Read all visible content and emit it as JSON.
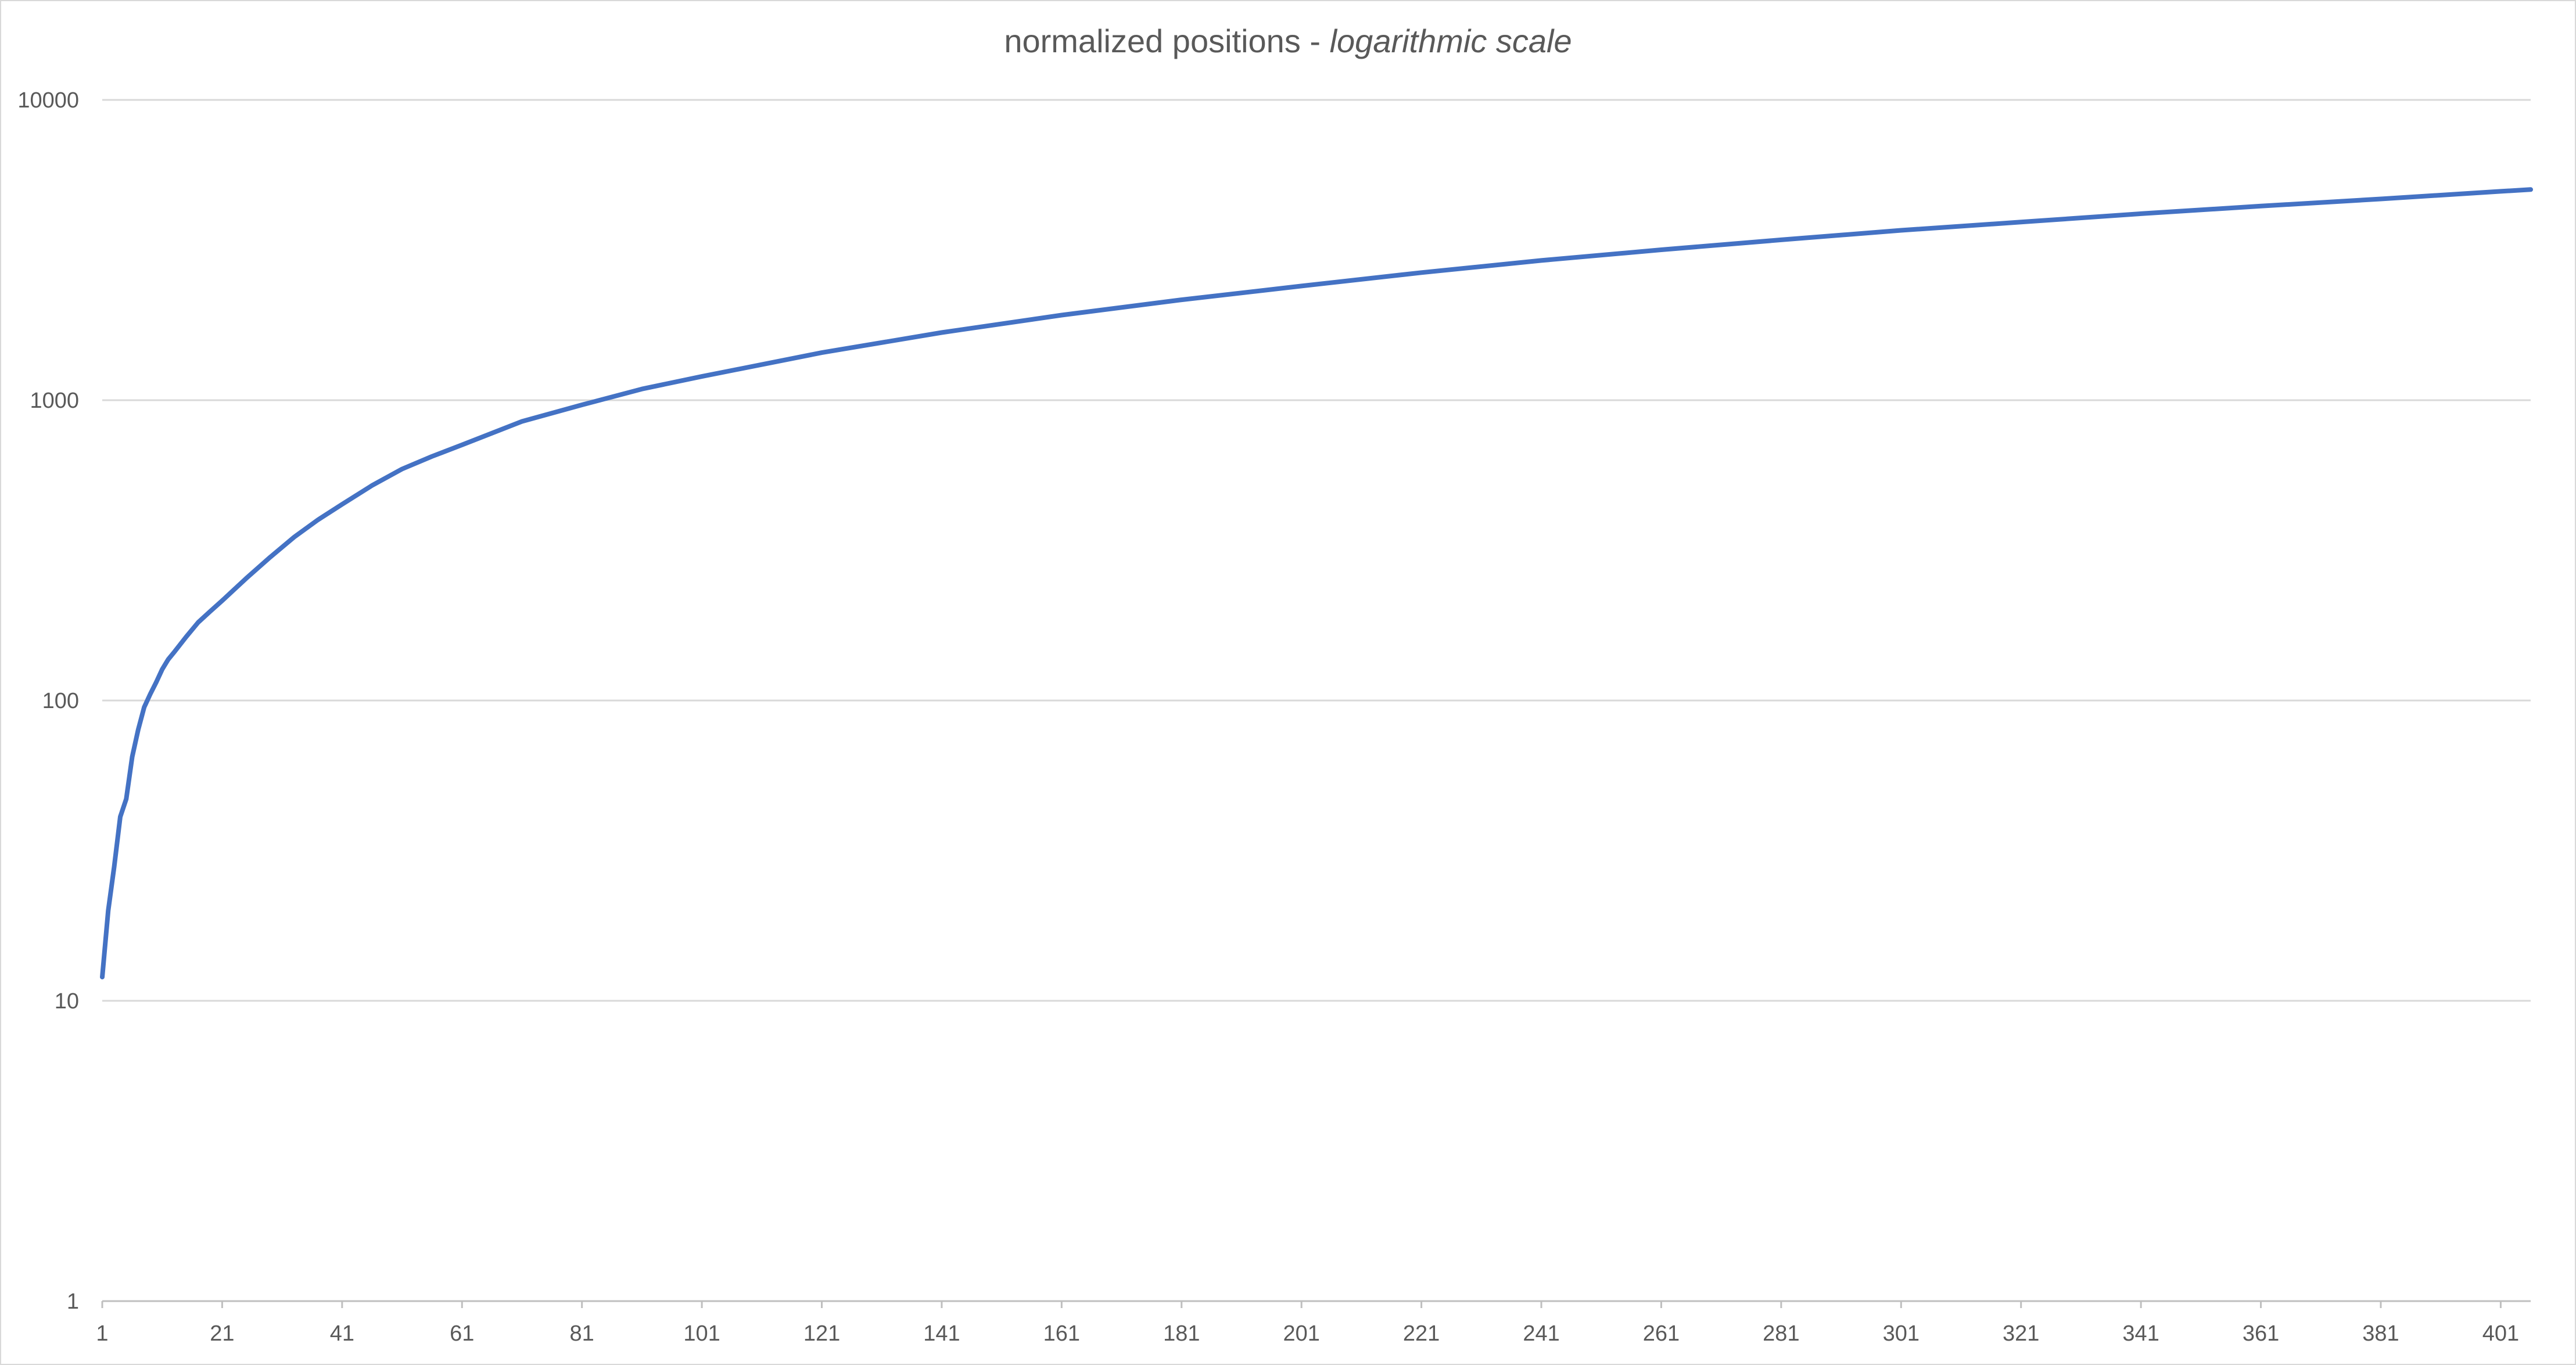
{
  "chart_data": {
    "type": "line",
    "title": "normalized positions - ",
    "title_emphasis": "logarithmic scale",
    "xlabel": "",
    "ylabel": "",
    "y_scale": "log",
    "ylim": [
      1,
      10000
    ],
    "xlim": [
      1,
      406
    ],
    "grid": true,
    "legend": "none",
    "x_tick_labels": [
      "1",
      "21",
      "41",
      "61",
      "81",
      "101",
      "121",
      "141",
      "161",
      "181",
      "201",
      "221",
      "241",
      "261",
      "281",
      "301",
      "321",
      "341",
      "361",
      "381",
      "401"
    ],
    "y_tick_labels": [
      "10000",
      "1000",
      "100",
      "10",
      "1"
    ],
    "series": [
      {
        "color": "#4472c4",
        "x": [
          1,
          2,
          3,
          4,
          5,
          6,
          7,
          8,
          9,
          10,
          11,
          12,
          13,
          15,
          17,
          19,
          21,
          25,
          29,
          33,
          37,
          41,
          46,
          51,
          56,
          61,
          71,
          81,
          91,
          101,
          121,
          141,
          161,
          181,
          201,
          221,
          241,
          261,
          281,
          301,
          321,
          341,
          361,
          381,
          401,
          406
        ],
        "y": [
          12,
          20,
          28,
          41,
          47,
          65,
          80,
          95,
          105,
          115,
          127,
          137,
          145,
          163,
          182,
          198,
          215,
          255,
          300,
          350,
          400,
          450,
          520,
          590,
          650,
          710,
          850,
          965,
          1090,
          1200,
          1440,
          1680,
          1920,
          2160,
          2400,
          2660,
          2920,
          3170,
          3420,
          3680,
          3920,
          4180,
          4430,
          4680,
          4960,
          5030
        ]
      }
    ]
  }
}
